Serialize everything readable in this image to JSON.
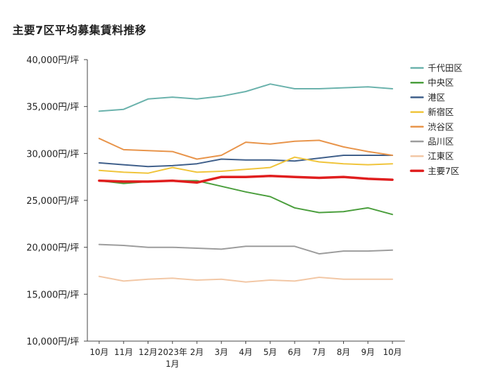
{
  "chart_data": {
    "type": "line",
    "title": "主要7区平均募集賃料推移",
    "xlabel": "",
    "ylabel": "",
    "y_tick_unit": "円/坪",
    "ylim": [
      10000,
      40000
    ],
    "y_ticks": [
      "40,000円/坪",
      "35,000円/坪",
      "30,000円/坪",
      "25,000円/坪",
      "20,000円/坪",
      "15,000円/坪",
      "10,000円/坪"
    ],
    "y_tick_values": [
      40000,
      35000,
      30000,
      25000,
      20000,
      15000,
      10000
    ],
    "categories": [
      "10月",
      "11月",
      "12月",
      "2023年\n1月",
      "2月",
      "3月",
      "4月",
      "5月",
      "6月",
      "7月",
      "8月",
      "9月",
      "10月"
    ],
    "grid": false,
    "legend_position": "right",
    "series": [
      {
        "name": "千代田区",
        "color": "#6ab2ac",
        "width": 2,
        "values": [
          34500,
          34700,
          35800,
          36000,
          35800,
          36100,
          36600,
          37400,
          36900,
          36900,
          37000,
          37100,
          36900
        ]
      },
      {
        "name": "中央区",
        "color": "#4a9e3c",
        "width": 2,
        "values": [
          27100,
          26800,
          27000,
          27100,
          27100,
          26500,
          25900,
          25400,
          24200,
          23700,
          23800,
          24200,
          23500
        ]
      },
      {
        "name": "港区",
        "color": "#3f5f8a",
        "width": 2,
        "values": [
          29000,
          28800,
          28600,
          28700,
          28900,
          29400,
          29300,
          29300,
          29200,
          29500,
          29800,
          29800,
          29800
        ]
      },
      {
        "name": "新宿区",
        "color": "#f0c43a",
        "width": 2,
        "values": [
          28200,
          28000,
          27900,
          28500,
          28000,
          28100,
          28300,
          28500,
          29600,
          29100,
          28900,
          28800,
          28900
        ]
      },
      {
        "name": "渋谷区",
        "color": "#e8944a",
        "width": 2,
        "values": [
          31600,
          30400,
          30300,
          30200,
          29400,
          29800,
          31200,
          31000,
          31300,
          31400,
          30700,
          30200,
          29800
        ]
      },
      {
        "name": "品川区",
        "color": "#9c9c9c",
        "width": 2,
        "values": [
          20300,
          20200,
          20000,
          20000,
          19900,
          19800,
          20100,
          20100,
          20100,
          19300,
          19600,
          19600,
          19700
        ]
      },
      {
        "name": "江東区",
        "color": "#f2c7a5",
        "width": 2,
        "values": [
          16900,
          16400,
          16600,
          16700,
          16500,
          16600,
          16300,
          16500,
          16400,
          16800,
          16600,
          16600,
          16600
        ]
      },
      {
        "name": "主要7区",
        "color": "#e01e1e",
        "width": 3.5,
        "values": [
          27100,
          27000,
          27000,
          27100,
          26900,
          27500,
          27500,
          27600,
          27500,
          27400,
          27500,
          27300,
          27200
        ]
      }
    ]
  }
}
